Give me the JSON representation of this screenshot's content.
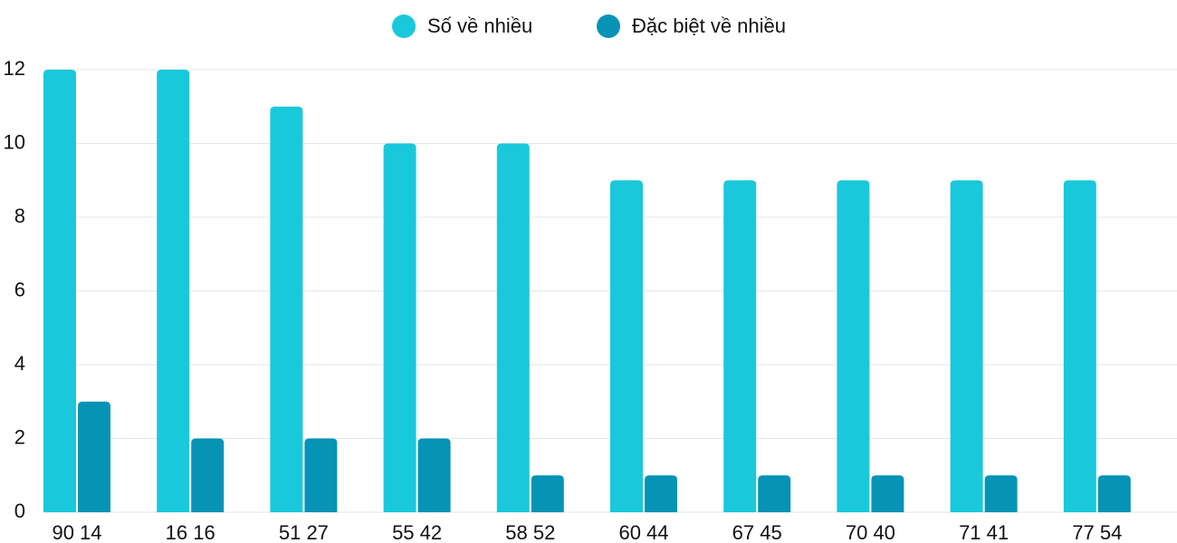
{
  "chart_data": {
    "type": "bar",
    "categories": [
      "90 14",
      "16 16",
      "51 27",
      "55 42",
      "58 52",
      "60 44",
      "67 45",
      "70 40",
      "71 41",
      "77 54"
    ],
    "series": [
      {
        "name": "Số về nhiều",
        "color": "#1ac8db",
        "values": [
          12,
          12,
          11,
          10,
          10,
          9,
          9,
          9,
          9,
          9
        ]
      },
      {
        "name": "Đặc biệt về nhiều",
        "color": "#0793b6",
        "values": [
          3,
          2,
          2,
          2,
          1,
          1,
          1,
          1,
          1,
          1
        ]
      }
    ],
    "ylim": [
      0,
      12
    ],
    "yticks": [
      0,
      2,
      4,
      6,
      8,
      10,
      12
    ],
    "grid": true,
    "legend": "top"
  }
}
